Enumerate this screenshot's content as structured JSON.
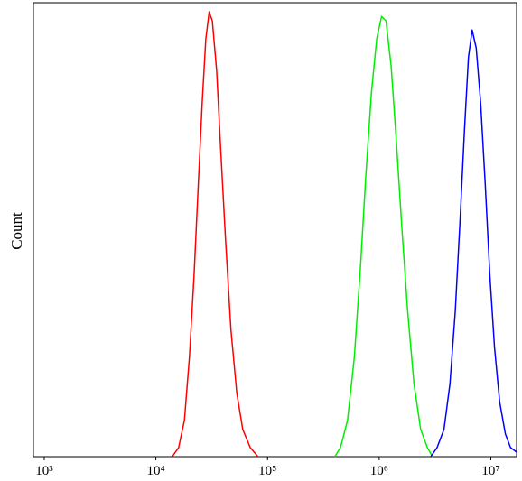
{
  "chart_data": {
    "type": "line",
    "y_label": "Count",
    "xscale": "log",
    "xlim": [
      800,
      17000000
    ],
    "ylim": [
      0,
      100
    ],
    "xticks": [
      {
        "value": 1000,
        "label": "10³"
      },
      {
        "value": 10000,
        "label": "10⁴"
      },
      {
        "value": 100000,
        "label": "10⁵"
      },
      {
        "value": 1000000,
        "label": "10⁶"
      },
      {
        "value": 10000000,
        "label": "10⁷"
      }
    ],
    "series": [
      {
        "color": "#ff0000",
        "x": [
          14000,
          16000,
          18000,
          20000,
          22000,
          24000,
          26000,
          28000,
          30000,
          32000,
          35000,
          38000,
          42000,
          47000,
          53000,
          60000,
          70000,
          82000
        ],
        "values": [
          0,
          2,
          8,
          22,
          40,
          60,
          78,
          92,
          98,
          96,
          85,
          68,
          48,
          28,
          14,
          6,
          2,
          0
        ]
      },
      {
        "color": "#00ee00",
        "x": [
          400000,
          450000,
          520000,
          600000,
          680000,
          760000,
          850000,
          950000,
          1050000,
          1150000,
          1280000,
          1420000,
          1600000,
          1800000,
          2050000,
          2350000,
          2700000,
          3000000
        ],
        "values": [
          0,
          2,
          8,
          22,
          42,
          62,
          80,
          92,
          97,
          96,
          86,
          70,
          50,
          32,
          16,
          6,
          2,
          0
        ]
      },
      {
        "color": "#0000ff",
        "x": [
          2900000,
          3300000,
          3800000,
          4300000,
          4800000,
          5300000,
          5800000,
          6300000,
          6800000,
          7400000,
          8100000,
          8900000,
          9800000,
          10800000,
          12000000,
          13500000,
          15000000,
          17000000
        ],
        "values": [
          0,
          2,
          6,
          16,
          32,
          52,
          72,
          88,
          94,
          90,
          78,
          60,
          40,
          24,
          12,
          5,
          2,
          1
        ]
      }
    ]
  }
}
